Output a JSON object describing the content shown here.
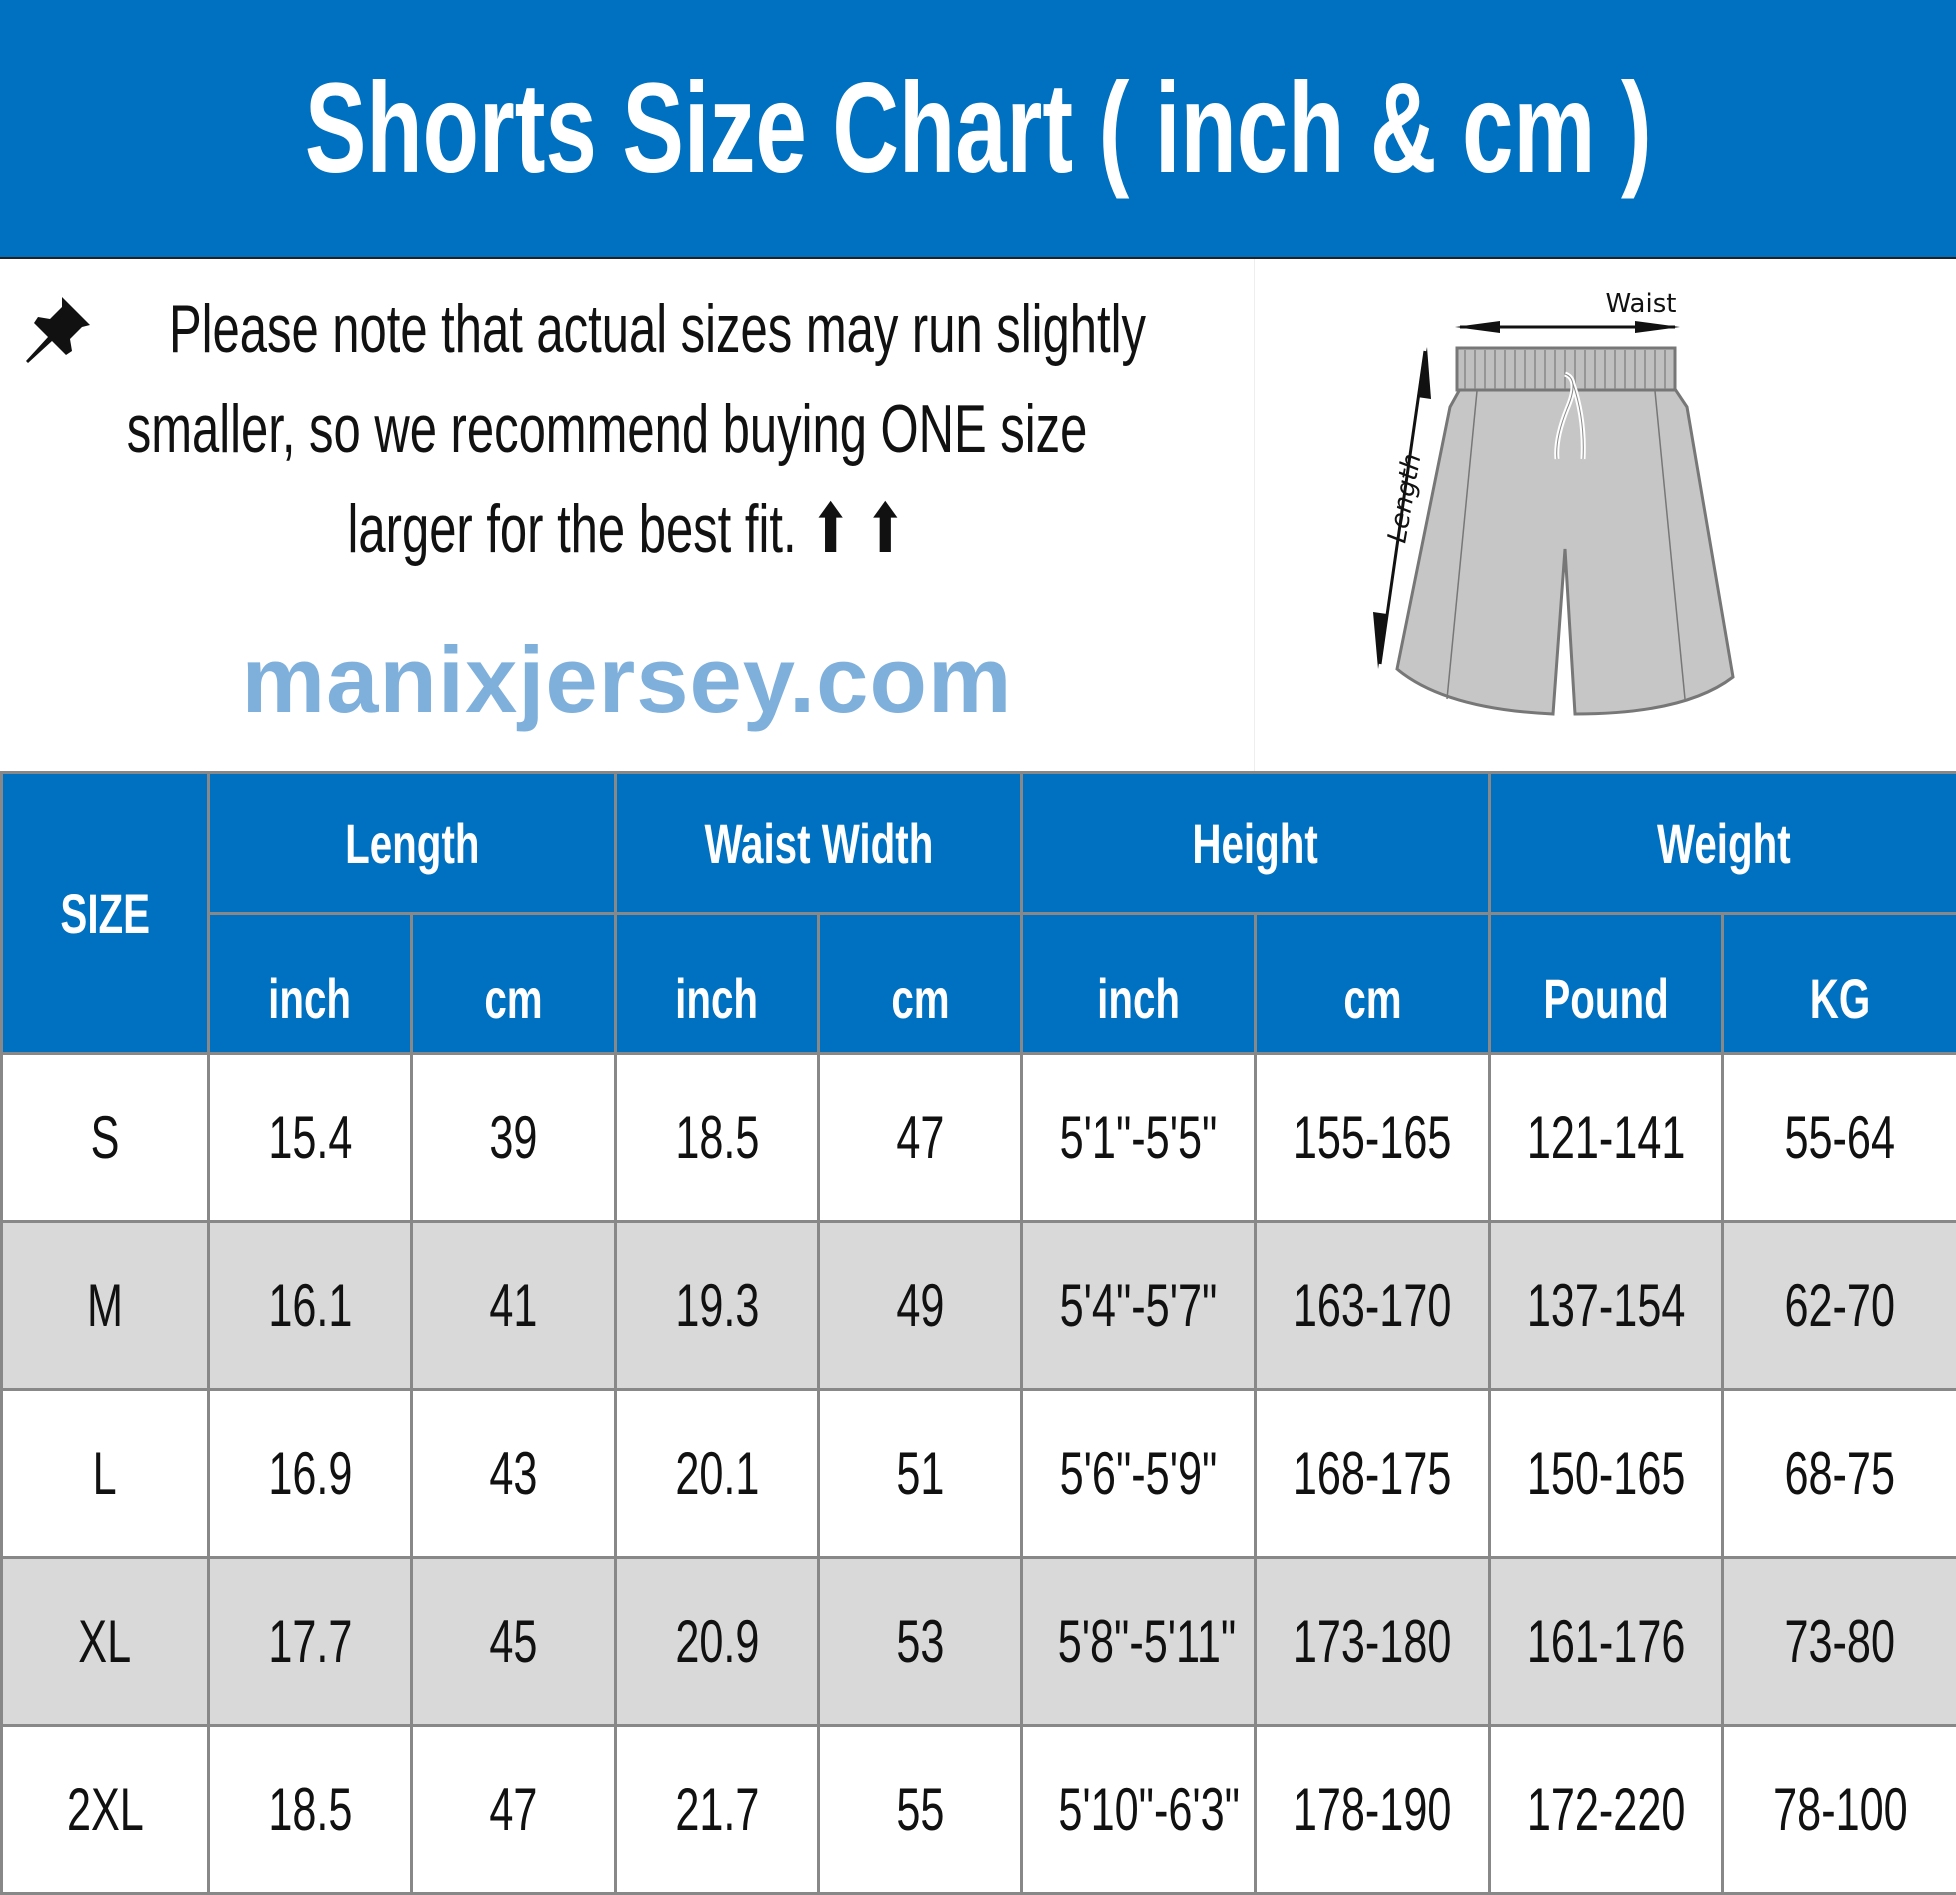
{
  "title": "Shorts Size Chart ( inch & cm )",
  "note": {
    "line1": "Please note that actual sizes may run slightly",
    "line2": "smaller, so we recommend buying ONE size",
    "line3": "larger for the best fit. ⬆ ⬆",
    "icon": "pushpin-icon"
  },
  "diagram": {
    "waist_label": "Waist",
    "length_label": "Length"
  },
  "watermark": "manixjersey.com",
  "colors": {
    "header": "#0070c0",
    "stripe": "#d9d9d9",
    "border": "#888888"
  },
  "table": {
    "size_header": "SIZE",
    "groups": [
      "Length",
      "Waist Width",
      "Height",
      "Weight"
    ],
    "subheaders": [
      "inch",
      "cm",
      "inch",
      "cm",
      "inch",
      "cm",
      "Pound",
      "KG"
    ],
    "rows": [
      [
        "S",
        "15.4",
        "39",
        "18.5",
        "47",
        "5'1\"-5'5\"",
        "155-165",
        "121-141",
        "55-64"
      ],
      [
        "M",
        "16.1",
        "41",
        "19.3",
        "49",
        "5'4\"-5'7\"",
        "163-170",
        "137-154",
        "62-70"
      ],
      [
        "L",
        "16.9",
        "43",
        "20.1",
        "51",
        "5'6\"-5'9\"",
        "168-175",
        "150-165",
        "68-75"
      ],
      [
        "XL",
        "17.7",
        "45",
        "20.9",
        "53",
        "5'8\"-5'11\"",
        "173-180",
        "161-176",
        "73-80"
      ],
      [
        "2XL",
        "18.5",
        "47",
        "21.7",
        "55",
        "5'10\"-6'3\"",
        "178-190",
        "172-220",
        "78-100"
      ]
    ]
  }
}
